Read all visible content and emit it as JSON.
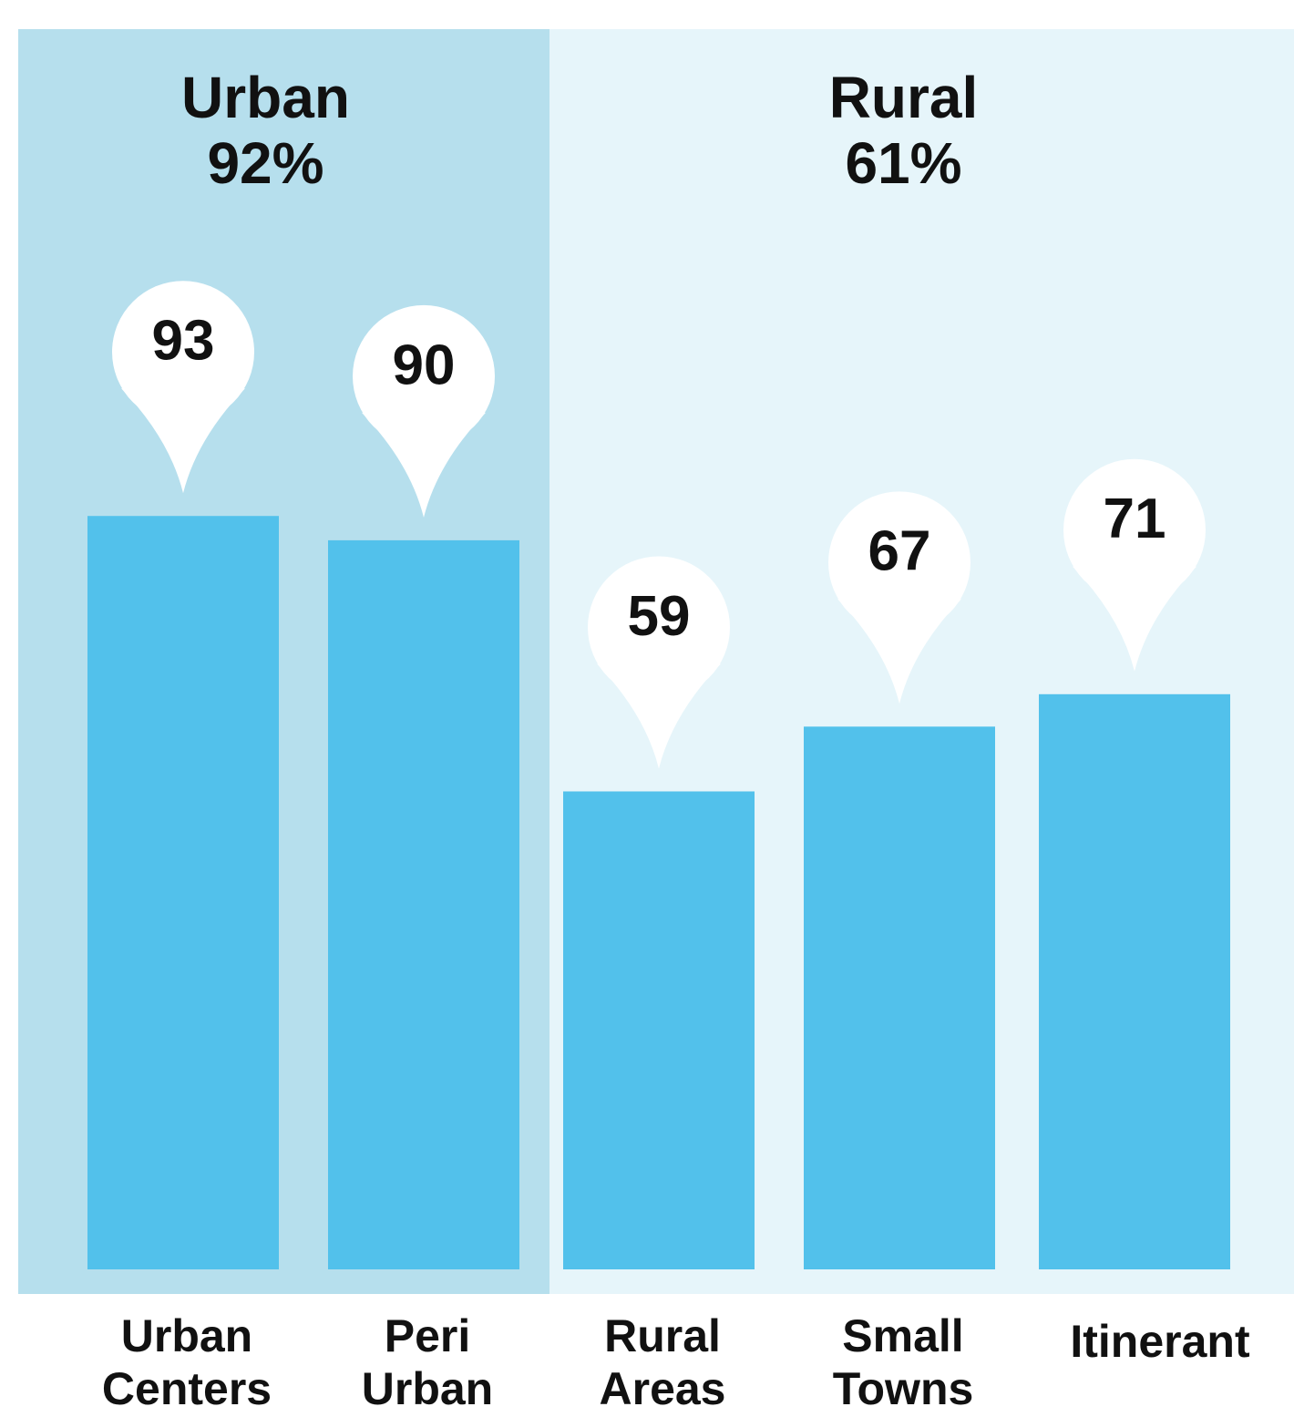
{
  "chart_data": {
    "type": "bar",
    "categories": [
      [
        "Urban",
        "Centers"
      ],
      [
        "Peri",
        "Urban"
      ],
      [
        "Rural",
        "Areas"
      ],
      [
        "Small",
        "Towns"
      ],
      [
        "Itinerant"
      ]
    ],
    "values": [
      93,
      90,
      59,
      67,
      71
    ],
    "color": "#52c1eb",
    "ylim": [
      0,
      100
    ],
    "groups": [
      {
        "name": "Urban",
        "value": 92,
        "value_label": "92%",
        "color": "#b6dfed"
      },
      {
        "name": "Rural",
        "value": 61,
        "value_label": "61%",
        "color": "#e6f5fa"
      }
    ]
  }
}
